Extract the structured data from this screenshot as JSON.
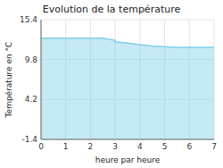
{
  "chart_data": {
    "type": "area",
    "title": "Evolution de la température",
    "xlabel": "heure par heure",
    "ylabel": "Température en °C",
    "x": [
      0,
      0.5,
      1,
      1.5,
      2,
      2.5,
      3,
      3.0,
      3.5,
      4.0,
      4.5,
      5.0,
      5.5,
      6.0,
      6.5,
      7.0
    ],
    "values": [
      12.8,
      12.8,
      12.8,
      12.8,
      12.8,
      12.8,
      12.5,
      12.3,
      12.1,
      11.9,
      11.7,
      11.6,
      11.5,
      11.5,
      11.5,
      11.5
    ],
    "xlim": [
      0,
      7
    ],
    "ylim": [
      -1.4,
      15.4
    ],
    "xticks": [
      0,
      1,
      2,
      3,
      4,
      5,
      6,
      7
    ],
    "yticks": [
      -1.4,
      4.2,
      9.8,
      15.4
    ],
    "color": "#7ecfe8",
    "grid": true
  }
}
